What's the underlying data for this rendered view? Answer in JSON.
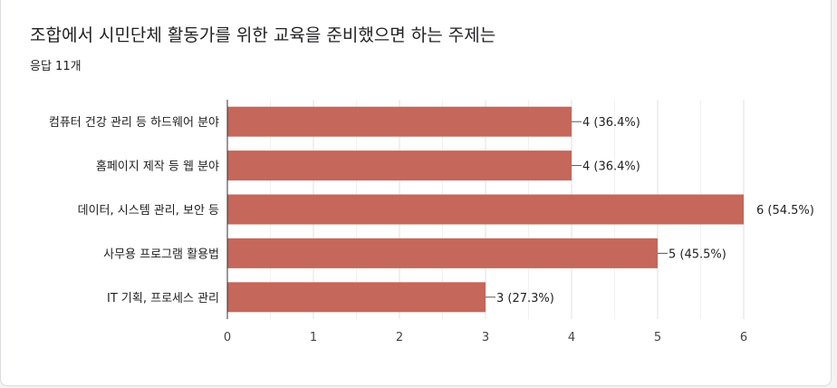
{
  "question": {
    "title": "조합에서 시민단체 활동가를 위한 교육을 준비했으면 하는 주제는",
    "response_count": "응답 11개"
  },
  "chart_data": {
    "type": "bar",
    "orientation": "horizontal",
    "categories": [
      "컴퓨터 건강 관리 등 하드웨어 분야",
      "홈페이지 제작 등 웹 분야",
      "데이터, 시스템 관리, 보안 등",
      "사무용 프로그램 활용법",
      "IT 기획, 프로세스 관리"
    ],
    "values": [
      4,
      4,
      6,
      5,
      3
    ],
    "data_labels": [
      "4 (36.4%)",
      "4 (36.4%)",
      "6 (54.5%)",
      "5 (45.5%)",
      "3 (27.3%)"
    ],
    "xlim": [
      0,
      6
    ],
    "xticks": [
      "0",
      "1",
      "2",
      "3",
      "4",
      "5",
      "6"
    ],
    "grid": true,
    "bar_color": "#c5675a"
  }
}
